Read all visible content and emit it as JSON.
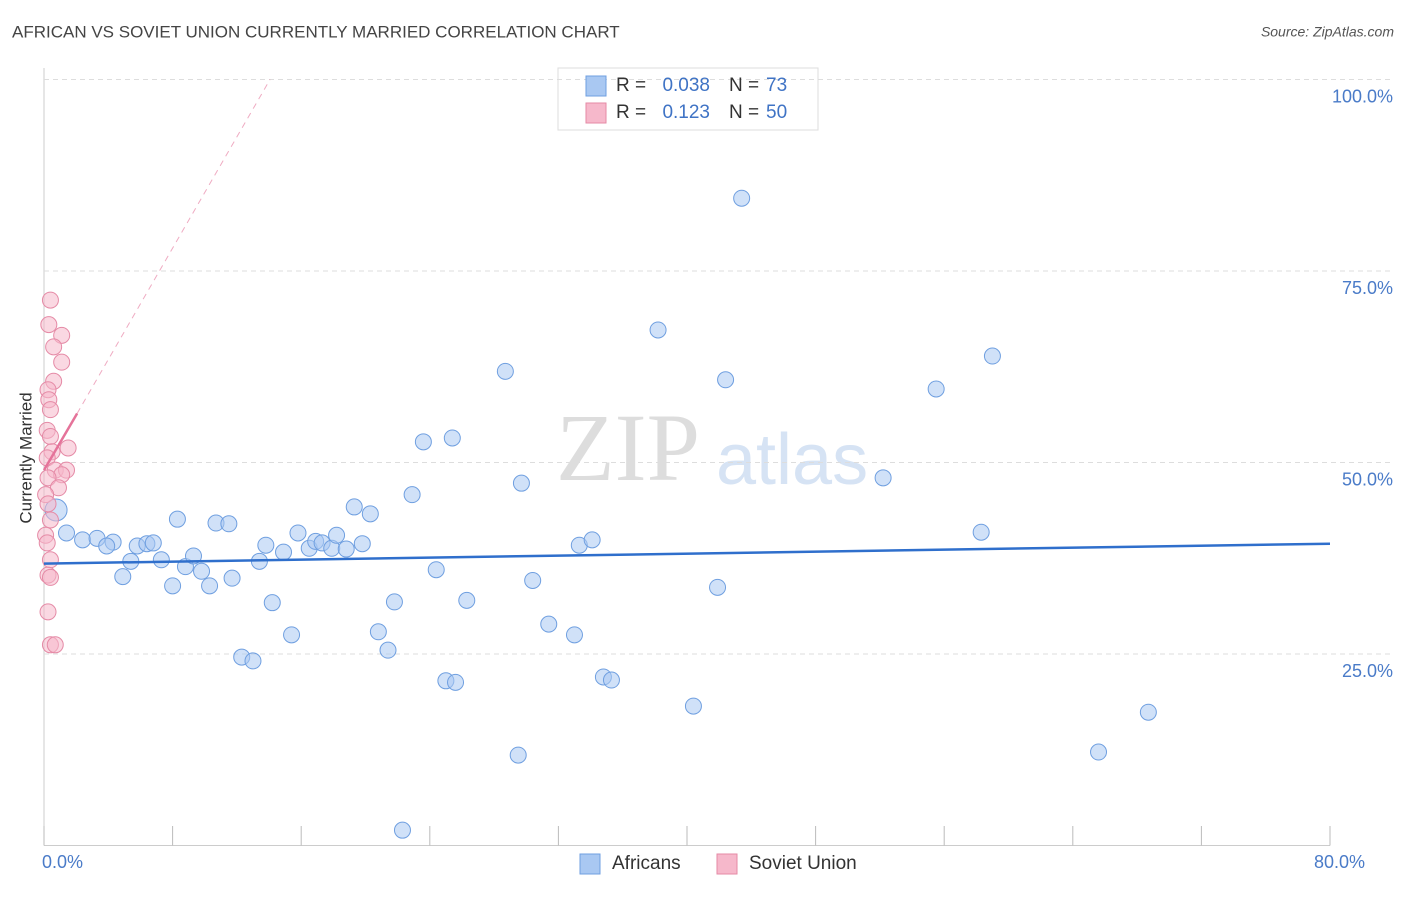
{
  "chart_data": {
    "type": "scatter",
    "title": "AFRICAN VS SOVIET UNION CURRENTLY MARRIED CORRELATION CHART",
    "source": "Source: ZipAtlas.com",
    "ylabel": "Currently Married",
    "watermark": {
      "zip": "ZIP",
      "atlas": "atlas"
    },
    "legend_labels": {
      "r": "R =",
      "n": "N ="
    },
    "xlim": [
      0,
      80
    ],
    "ylim": [
      0,
      100
    ],
    "xticks": [
      {
        "value": 0,
        "label": "0.0%"
      },
      {
        "value": 8,
        "label": null
      },
      {
        "value": 16,
        "label": null
      },
      {
        "value": 24,
        "label": null
      },
      {
        "value": 32,
        "label": null
      },
      {
        "value": 40,
        "label": null
      },
      {
        "value": 48,
        "label": null
      },
      {
        "value": 56,
        "label": null
      },
      {
        "value": 64,
        "label": null
      },
      {
        "value": 72,
        "label": null
      },
      {
        "value": 80,
        "label": "80.0%"
      }
    ],
    "yticks": [
      {
        "value": 25,
        "label": "25.0%"
      },
      {
        "value": 50,
        "label": "50.0%"
      },
      {
        "value": 75,
        "label": "75.0%"
      },
      {
        "value": 100,
        "label": "100.0%"
      }
    ],
    "grid": true,
    "series": [
      {
        "name": "Africans",
        "color": "#a9c8f2",
        "stroke": "#6f9fe0",
        "line_color": "#2f6fcc",
        "r": 0.038,
        "n": 73,
        "x": [
          0.75,
          1.4,
          2.4,
          3.3,
          4.3,
          3.9,
          4.9,
          5.4,
          5.8,
          6.4,
          6.8,
          7.3,
          8.0,
          8.3,
          8.8,
          9.3,
          9.8,
          10.3,
          10.7,
          11.5,
          11.7,
          12.3,
          13.0,
          13.4,
          13.8,
          14.2,
          14.9,
          15.4,
          15.8,
          16.5,
          16.9,
          17.3,
          17.9,
          18.2,
          18.8,
          19.3,
          19.8,
          20.3,
          20.8,
          21.4,
          21.8,
          22.3,
          22.9,
          23.6,
          24.4,
          25.0,
          25.4,
          25.6,
          26.3,
          28.7,
          29.5,
          29.7,
          30.4,
          31.4,
          33.0,
          33.3,
          34.1,
          34.8,
          35.3,
          38.2,
          40.4,
          41.9,
          42.4,
          43.4,
          52.2,
          55.5,
          58.3,
          59.0,
          65.6,
          68.7
        ],
        "values": [
          43.8,
          40.8,
          39.9,
          40.1,
          39.6,
          39.1,
          35.1,
          37.1,
          39.1,
          39.4,
          39.5,
          37.3,
          33.9,
          42.6,
          36.4,
          37.8,
          35.8,
          33.9,
          42.1,
          42.0,
          34.9,
          24.6,
          24.1,
          37.1,
          39.2,
          31.7,
          38.3,
          27.5,
          40.8,
          38.8,
          39.7,
          39.5,
          38.8,
          40.5,
          38.7,
          44.2,
          39.4,
          43.3,
          27.9,
          25.5,
          31.8,
          2.0,
          45.8,
          52.7,
          36.0,
          21.5,
          53.2,
          21.3,
          32.0,
          61.9,
          11.8,
          47.3,
          34.6,
          28.9,
          27.5,
          39.2,
          39.9,
          22.0,
          21.6,
          67.3,
          18.2,
          33.7,
          60.8,
          84.5,
          48.0,
          59.6,
          40.9,
          63.9,
          12.2,
          17.4
        ],
        "trend": {
          "x": [
            0,
            80
          ],
          "values": [
            36.8,
            39.4
          ]
        }
      },
      {
        "name": "Soviet Union",
        "color": "#f6b8cb",
        "stroke": "#e58aa6",
        "line_color": "#e5739a",
        "r": 0.123,
        "n": 50,
        "x": [
          0.4,
          0.3,
          1.1,
          0.6,
          1.1,
          0.6,
          0.25,
          0.3,
          0.4,
          0.2,
          0.4,
          1.5,
          0.5,
          0.2,
          0.7,
          1.4,
          1.1,
          0.25,
          0.9,
          0.1,
          0.25,
          0.4,
          0.1,
          0.2,
          0.4,
          0.25,
          0.4,
          0.25,
          0.4,
          0.7
        ],
        "values": [
          71.2,
          68.0,
          66.6,
          65.1,
          63.1,
          60.6,
          59.5,
          58.2,
          56.9,
          54.2,
          53.4,
          51.9,
          51.4,
          50.6,
          49.0,
          49.0,
          48.4,
          48.0,
          46.7,
          45.8,
          44.6,
          42.5,
          40.5,
          39.5,
          37.3,
          35.3,
          35.0,
          30.5,
          26.2,
          26.2
        ],
        "trend": {
          "x": [
            0,
            2.06
          ],
          "values": [
            49.0,
            56.4
          ]
        },
        "trend_extension": {
          "x": [
            2.06,
            14.06
          ],
          "values": [
            56.4,
            100
          ]
        }
      }
    ]
  }
}
